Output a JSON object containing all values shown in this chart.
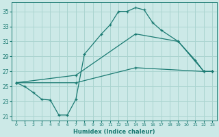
{
  "xlabel": "Humidex (Indice chaleur)",
  "background_color": "#cce9e7",
  "grid_color": "#aad4d0",
  "line_color": "#1a7a72",
  "xlim": [
    -0.5,
    23.5
  ],
  "ylim": [
    20.5,
    36.2
  ],
  "xticks": [
    0,
    1,
    2,
    3,
    4,
    5,
    6,
    7,
    8,
    9,
    10,
    11,
    12,
    13,
    14,
    15,
    16,
    17,
    18,
    19,
    20,
    21,
    22,
    23
  ],
  "yticks": [
    21,
    23,
    25,
    27,
    29,
    31,
    33,
    35
  ],
  "line1_x": [
    0,
    1,
    2,
    3,
    4,
    5,
    6,
    7,
    8,
    10,
    11,
    12,
    13,
    14,
    15,
    16,
    17,
    19,
    21,
    22,
    23
  ],
  "line1_y": [
    25.5,
    25.0,
    24.2,
    23.3,
    23.2,
    21.2,
    21.2,
    23.3,
    29.3,
    32.0,
    33.2,
    35.0,
    35.0,
    35.5,
    35.2,
    33.5,
    32.5,
    31.0,
    28.5,
    27.0,
    27.0
  ],
  "line2_x": [
    0,
    7,
    14,
    19,
    22,
    23
  ],
  "line2_y": [
    25.5,
    26.5,
    32.0,
    31.0,
    27.0,
    27.0
  ],
  "line3_x": [
    0,
    7,
    14,
    22,
    23
  ],
  "line3_y": [
    25.5,
    25.5,
    27.5,
    27.0,
    27.0
  ]
}
